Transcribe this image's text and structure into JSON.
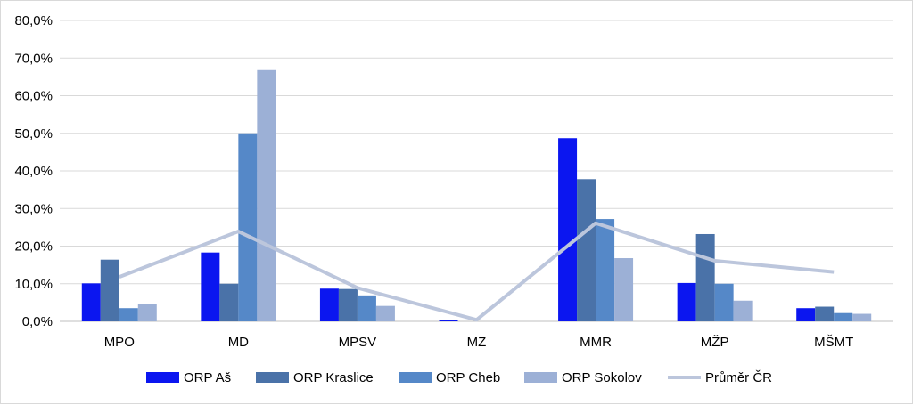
{
  "chart_data": {
    "type": "bar",
    "title": "",
    "xlabel": "",
    "ylabel": "",
    "categories": [
      "MPO",
      "MD",
      "MPSV",
      "MZ",
      "MMR",
      "MŽP",
      "MŠMT"
    ],
    "ylim": [
      0,
      80
    ],
    "yticks": [
      0,
      10,
      20,
      30,
      40,
      50,
      60,
      70,
      80
    ],
    "ytick_labels": [
      "0,0%",
      "10,0%",
      "20,0%",
      "30,0%",
      "40,0%",
      "50,0%",
      "60,0%",
      "70,0%",
      "80,0%"
    ],
    "grid": true,
    "legend_position": "bottom",
    "series": [
      {
        "name": "ORP Aš",
        "kind": "bar",
        "color": "#0b16f0",
        "values": [
          10.1,
          18.3,
          8.7,
          0.4,
          48.7,
          10.2,
          3.5
        ]
      },
      {
        "name": "ORP Kraslice",
        "kind": "bar",
        "color": "#4a72a8",
        "values": [
          16.4,
          10.0,
          8.6,
          0.0,
          37.8,
          23.2,
          3.9
        ]
      },
      {
        "name": "ORP Cheb",
        "kind": "bar",
        "color": "#5588c8",
        "values": [
          3.5,
          50.0,
          6.9,
          0.0,
          27.2,
          10.0,
          2.2
        ]
      },
      {
        "name": "ORP Sokolov",
        "kind": "bar",
        "color": "#9cb0d6",
        "values": [
          4.6,
          66.8,
          4.1,
          0.0,
          16.8,
          5.5,
          2.0
        ]
      },
      {
        "name": "Průměr ČR",
        "kind": "line",
        "color": "#bcc6dc",
        "values": [
          11.8,
          23.9,
          8.9,
          0.4,
          26.1,
          16.1,
          13.1
        ]
      }
    ]
  }
}
